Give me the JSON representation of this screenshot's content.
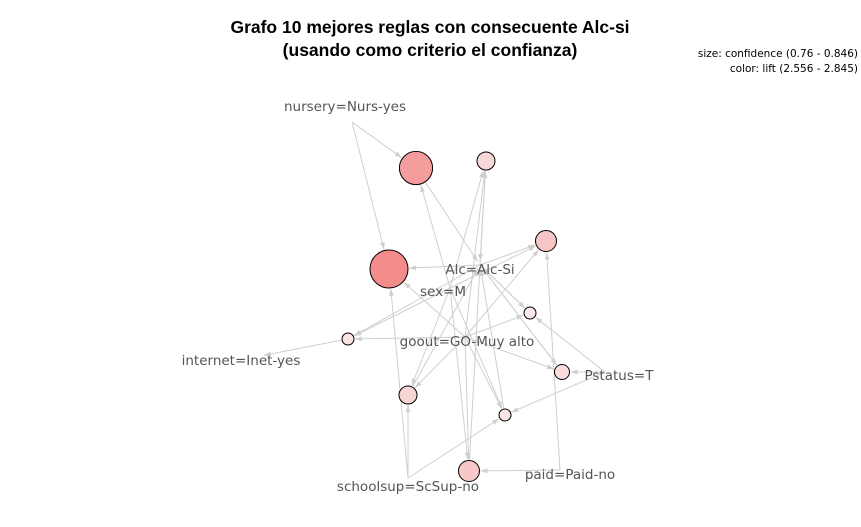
{
  "graph": {
    "title_line1": "Grafo 10 mejores reglas con consecuente Alc-si",
    "title_line2": "(usando como criterio el confianza)",
    "legend_size": "size: confidence (0.76 - 0.846)",
    "legend_color": "color: lift (2.556 - 2.845)",
    "edge_color": "#cfcfcf",
    "items": [
      "nursery=Nurs-yes",
      "Alc=Alc-Si",
      "sex=M",
      "goout=GO-Muy alto",
      "internet=Inet-yes",
      "Pstatus=T",
      "schoolsup=ScSup-no",
      "paid=Paid-no"
    ],
    "rules": [
      {
        "name": "rule-1",
        "confidence": 0.846,
        "lift": 2.845,
        "color": "#f48c8c"
      },
      {
        "name": "rule-2",
        "confidence": 0.83,
        "lift": 2.8,
        "color": "#f59c9c"
      },
      {
        "name": "rule-3",
        "confidence": 0.78,
        "lift": 2.6,
        "color": "#f8d7d7"
      },
      {
        "name": "rule-4",
        "confidence": 0.79,
        "lift": 2.65,
        "color": "#f6c6c6"
      },
      {
        "name": "rule-5",
        "confidence": 0.76,
        "lift": 2.556,
        "color": "#fbe7e7"
      },
      {
        "name": "rule-6",
        "confidence": 0.76,
        "lift": 2.57,
        "color": "#fbe3e3"
      },
      {
        "name": "rule-7",
        "confidence": 0.77,
        "lift": 2.58,
        "color": "#f9dddd"
      },
      {
        "name": "rule-8",
        "confidence": 0.78,
        "lift": 2.6,
        "color": "#f8d5d5"
      },
      {
        "name": "rule-9",
        "confidence": 0.76,
        "lift": 2.56,
        "color": "#fbe5e5"
      },
      {
        "name": "rule-10",
        "confidence": 0.79,
        "lift": 2.62,
        "color": "#f6c8c8"
      }
    ]
  }
}
